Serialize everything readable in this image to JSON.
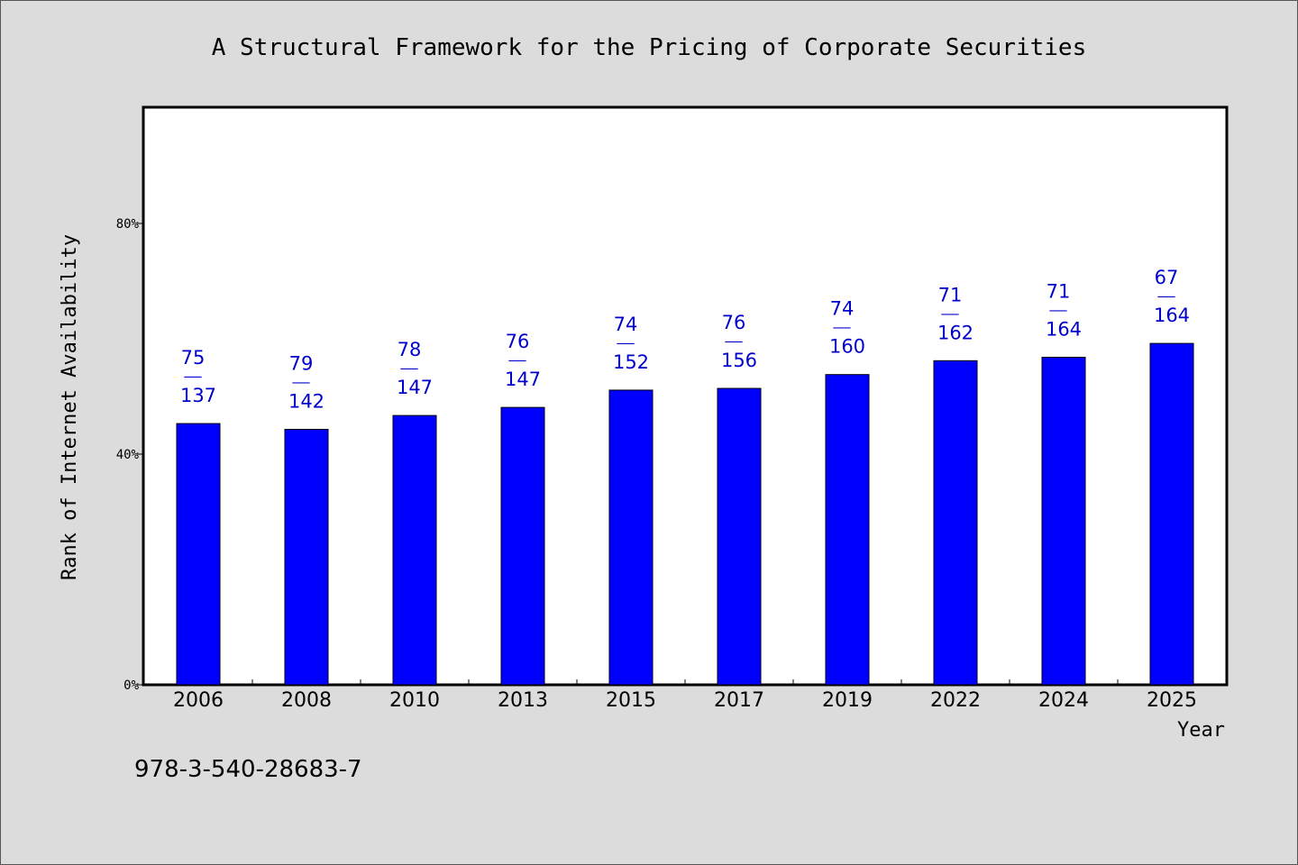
{
  "chart_data": {
    "type": "bar",
    "title": "A Structural Framework for the Pricing of Corporate Securities",
    "xlabel": "Year",
    "ylabel": "Rank of Internet Availability",
    "categories": [
      "2006",
      "2008",
      "2010",
      "2013",
      "2015",
      "2017",
      "2019",
      "2022",
      "2024",
      "2025"
    ],
    "series": [
      {
        "values": [
          45.3,
          44.3,
          46.7,
          48.1,
          51.1,
          51.4,
          53.8,
          56.2,
          56.8,
          59.2
        ]
      }
    ],
    "bar_labels": [
      {
        "top": "75",
        "sep": "——",
        "bottom": "137"
      },
      {
        "top": "79",
        "sep": "——",
        "bottom": "142"
      },
      {
        "top": "78",
        "sep": "——",
        "bottom": "147"
      },
      {
        "top": "76",
        "sep": "——",
        "bottom": "147"
      },
      {
        "top": "74",
        "sep": "——",
        "bottom": "152"
      },
      {
        "top": "76",
        "sep": "——",
        "bottom": "156"
      },
      {
        "top": "74",
        "sep": "——",
        "bottom": "160"
      },
      {
        "top": "71",
        "sep": "——",
        "bottom": "162"
      },
      {
        "top": "71",
        "sep": "——",
        "bottom": "164"
      },
      {
        "top": "67",
        "sep": "——",
        "bottom": "164"
      }
    ],
    "ylim": [
      0,
      100
    ],
    "yticks": [
      0,
      40,
      80
    ],
    "ytick_labels": [
      "0%",
      "40%",
      "80%"
    ],
    "grid": false,
    "legend": "none",
    "colors": {
      "bar": "#0000ff",
      "label": "#0000cc",
      "background": "#dcdcdc",
      "plot_background": "#ffffff",
      "axis": "#000000"
    }
  },
  "footnote": "978-3-540-28683-7"
}
